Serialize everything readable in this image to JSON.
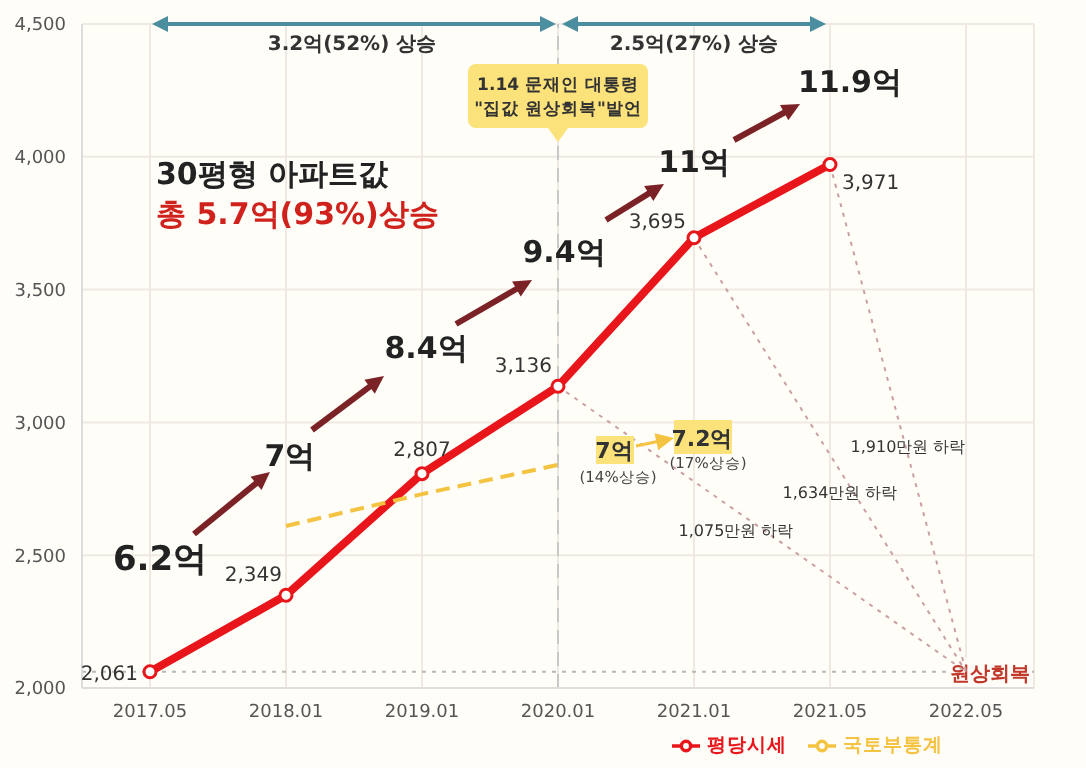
{
  "chart_data": {
    "type": "line",
    "categories": [
      "2017.05",
      "2018.01",
      "2019.01",
      "2020.01",
      "2021.01",
      "2021.05",
      "2022.05"
    ],
    "series": [
      {
        "name": "평당시세",
        "color": "#e8161b",
        "values": [
          2061,
          2349,
          2807,
          3136,
          3695,
          3971,
          null
        ],
        "value_labels": [
          "2,061",
          "2,349",
          "2,807",
          "3,136",
          "3,695",
          "3,971",
          null
        ],
        "marker": "circle",
        "line_style": "solid"
      },
      {
        "name": "국토부통계",
        "color": "#f5c342",
        "values": [
          null,
          2610,
          2730,
          2840,
          null,
          null,
          null
        ],
        "marker": "none",
        "line_style": "dashed"
      },
      {
        "color": "#c9a0a0",
        "values": [
          null,
          null,
          null,
          3136,
          null,
          null,
          2061
        ],
        "marker": "none",
        "line_style": "dotted"
      },
      {
        "color": "#c9a0a0",
        "values": [
          null,
          null,
          null,
          null,
          3695,
          null,
          2061
        ],
        "marker": "none",
        "line_style": "dotted"
      },
      {
        "color": "#c9a0a0",
        "values": [
          null,
          null,
          null,
          null,
          null,
          3971,
          2061
        ],
        "marker": "none",
        "line_style": "dotted"
      }
    ],
    "ylim": [
      2000,
      4500
    ],
    "yticks": [
      {
        "value": 2000,
        "label": "2,000"
      },
      {
        "value": 2500,
        "label": "2,500"
      },
      {
        "value": 3000,
        "label": "3,000"
      },
      {
        "value": 3500,
        "label": "3,500"
      },
      {
        "value": 4000,
        "label": "4,000"
      },
      {
        "value": 4500,
        "label": "4,500"
      }
    ],
    "grid": true,
    "legend": "bottom",
    "ref_lines": [
      {
        "axis": "x",
        "value": "2020.01",
        "color": "#c8c8c8",
        "line_style": "dashed"
      },
      {
        "axis": "y",
        "value": 2061,
        "label": "원상회복",
        "color": "#b8b8b8",
        "line_style": "dotted"
      }
    ],
    "annotations": [
      "3.2억(52%) 상승",
      "2.5억(27%) 상승",
      "1.14 문재인 대통령",
      "\"집값 원상회복\"발언",
      "30평형 아파트값",
      "총 5.7억(93%)상승",
      "6.2억",
      "7억",
      "8.4억",
      "9.4억",
      "11억",
      "11.9억",
      "7억",
      "(14%상승)",
      "7.2억",
      "(17%상승)",
      "1,075만원 하락",
      "1,634만원 하락",
      "1,910만원 하락"
    ]
  }
}
